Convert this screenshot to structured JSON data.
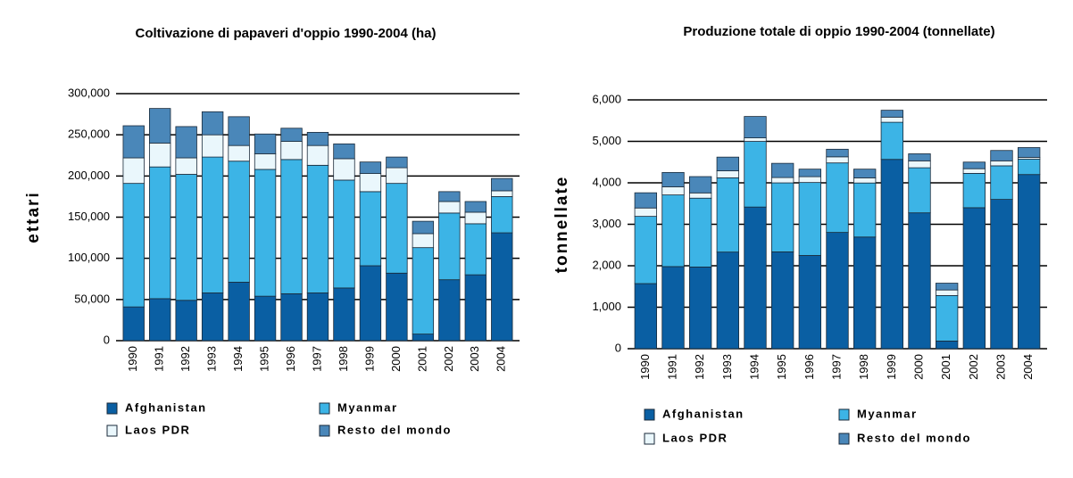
{
  "chart_data": [
    {
      "type": "bar",
      "stacked": true,
      "title": "Coltivazione di papaveri d'oppio 1990-2004 (ha)",
      "ylabel": "ettari",
      "categories": [
        "1990",
        "1991",
        "1992",
        "1993",
        "1994",
        "1995",
        "1996",
        "1997",
        "1998",
        "1999",
        "2000",
        "2001",
        "2002",
        "2003",
        "2004"
      ],
      "series": [
        {
          "name": "Afghanistan",
          "color": "#0a5fa3",
          "values": [
            41000,
            51000,
            49000,
            58000,
            71000,
            54000,
            57000,
            58000,
            64000,
            91000,
            82000,
            8000,
            74000,
            80000,
            131000
          ]
        },
        {
          "name": "Myanmar",
          "color": "#3cb4e6",
          "values": [
            150000,
            160000,
            153000,
            165000,
            147000,
            154000,
            163000,
            155000,
            131000,
            90000,
            109000,
            105000,
            81000,
            62000,
            44000
          ]
        },
        {
          "name": "Laos PDR",
          "color": "#eaf7fc",
          "values": [
            31000,
            29000,
            20000,
            27000,
            19000,
            19000,
            22000,
            24000,
            26000,
            22000,
            19000,
            17000,
            14000,
            14000,
            7000
          ]
        },
        {
          "name": "Resto del mondo",
          "color": "#4a87b9",
          "values": [
            39000,
            42000,
            38000,
            28000,
            35000,
            24000,
            16000,
            16000,
            18000,
            14000,
            13000,
            15000,
            12000,
            13000,
            15000
          ]
        }
      ],
      "ylim": [
        0,
        300000
      ],
      "yticks": [
        0,
        {
          "value": 50000,
          "label": "50,000"
        },
        {
          "value": 100000,
          "label": "100,000"
        },
        {
          "value": 150000,
          "label": "150,000"
        },
        {
          "value": 200000,
          "label": "200,000"
        },
        {
          "value": 250000,
          "label": "250,000"
        },
        {
          "value": 300000,
          "label": "300,000"
        }
      ],
      "grid": true
    },
    {
      "type": "bar",
      "stacked": true,
      "title": "Produzione totale di oppio 1990-2004 (tonnellate)",
      "ylabel": "tonnellate",
      "categories": [
        "1990",
        "1991",
        "1992",
        "1993",
        "1994",
        "1995",
        "1996",
        "1997",
        "1998",
        "1999",
        "2000",
        "2001",
        "2002",
        "2003",
        "2004"
      ],
      "series": [
        {
          "name": "Afghanistan",
          "color": "#0a5fa3",
          "values": [
            1570,
            1980,
            1970,
            2330,
            3416,
            2335,
            2248,
            2804,
            2693,
            4565,
            3276,
            185,
            3400,
            3600,
            4200
          ]
        },
        {
          "name": "Myanmar",
          "color": "#3cb4e6",
          "values": [
            1621,
            1728,
            1660,
            1791,
            1583,
            1664,
            1760,
            1676,
            1303,
            895,
            1087,
            1097,
            828,
            810,
            370
          ]
        },
        {
          "name": "Laos PDR",
          "color": "#eaf7fc",
          "values": [
            202,
            196,
            127,
            169,
            85,
            128,
            140,
            147,
            124,
            124,
            167,
            134,
            112,
            120,
            43
          ]
        },
        {
          "name": "Resto del mondo",
          "color": "#4a87b9",
          "values": [
            367,
            346,
            393,
            330,
            516,
            343,
            182,
            183,
            210,
            166,
            170,
            164,
            160,
            250,
            237
          ]
        }
      ],
      "ylim": [
        0,
        6000
      ],
      "yticks": [
        0,
        {
          "value": 1000,
          "label": "1,000"
        },
        {
          "value": 2000,
          "label": "2,000"
        },
        {
          "value": 3000,
          "label": "3,000"
        },
        {
          "value": 4000,
          "label": "4,000"
        },
        {
          "value": 5000,
          "label": "5,000"
        },
        {
          "value": 6000,
          "label": "6,000"
        }
      ],
      "grid": true
    }
  ]
}
